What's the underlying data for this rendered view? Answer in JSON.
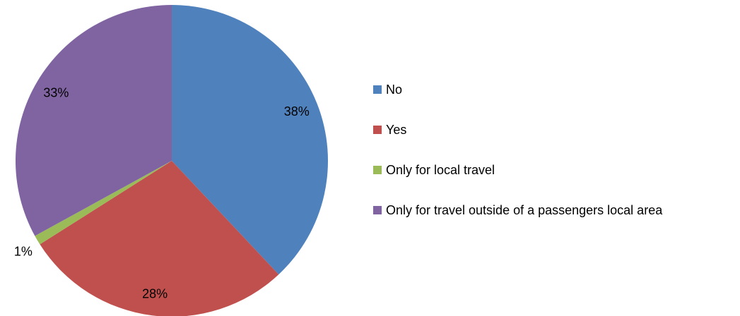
{
  "chart_data": {
    "type": "pie",
    "title": "",
    "slices": [
      {
        "label": "No",
        "value": 38,
        "value_label": "38%",
        "color": "#4f81bd"
      },
      {
        "label": "Yes",
        "value": 28,
        "value_label": "28%",
        "color": "#c0504d"
      },
      {
        "label": "Only for local travel",
        "value": 1,
        "value_label": "1%",
        "color": "#9bbb59"
      },
      {
        "label": "Only for travel outside of a passengers local area",
        "value": 33,
        "value_label": "33%",
        "color": "#8064a2"
      }
    ],
    "start_angle": "12 o'clock",
    "direction": "clockwise",
    "legend_position": "right"
  }
}
